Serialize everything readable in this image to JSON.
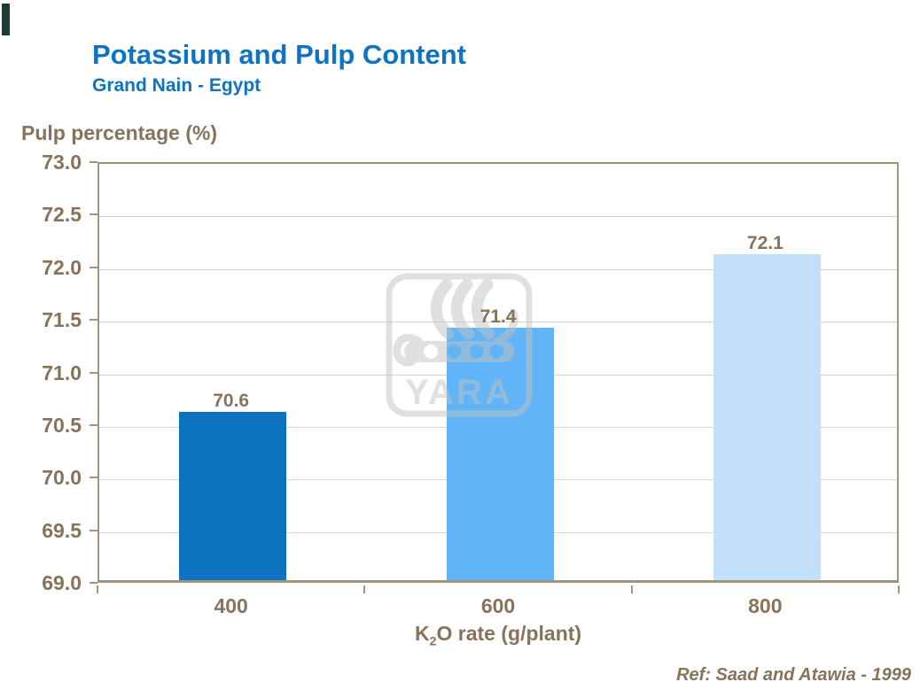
{
  "header": {
    "title": "Potassium and Pulp Content",
    "subtitle": "Grand Nain - Egypt"
  },
  "chart_data": {
    "type": "bar",
    "title": "Potassium and Pulp Content",
    "subtitle": "Grand Nain - Egypt",
    "categories": [
      "400",
      "600",
      "800"
    ],
    "values": [
      70.6,
      71.4,
      72.1
    ],
    "value_labels": [
      "70.6",
      "71.4",
      "72.1"
    ],
    "bar_colors": [
      "#0D72C0",
      "#61B4F7",
      "#C3E0FA"
    ],
    "ylabel": "Pulp percentage (%)",
    "xlabel": {
      "base": "K",
      "sub": "2",
      "rest": "O rate (g/plant)"
    },
    "ylim": [
      69.0,
      73.0
    ],
    "ytick_step": 0.5,
    "yticks": [
      "73.0",
      "72.5",
      "72.0",
      "71.5",
      "71.0",
      "70.5",
      "70.0",
      "69.5",
      "69.0"
    ],
    "grid": "horizontal",
    "legend": "none"
  },
  "watermark": {
    "text": "YARA"
  },
  "footer": {
    "reference": "Ref: Saad and Atawia - 1999"
  },
  "colors": {
    "title_blue": "#0F73C4",
    "axis_text_brown": "#86735A",
    "axis_line": "#A2947F",
    "gridline": "#DDD4C7",
    "corner_mark": "#1B3B34",
    "watermark_gray": "#C2C2C2"
  }
}
